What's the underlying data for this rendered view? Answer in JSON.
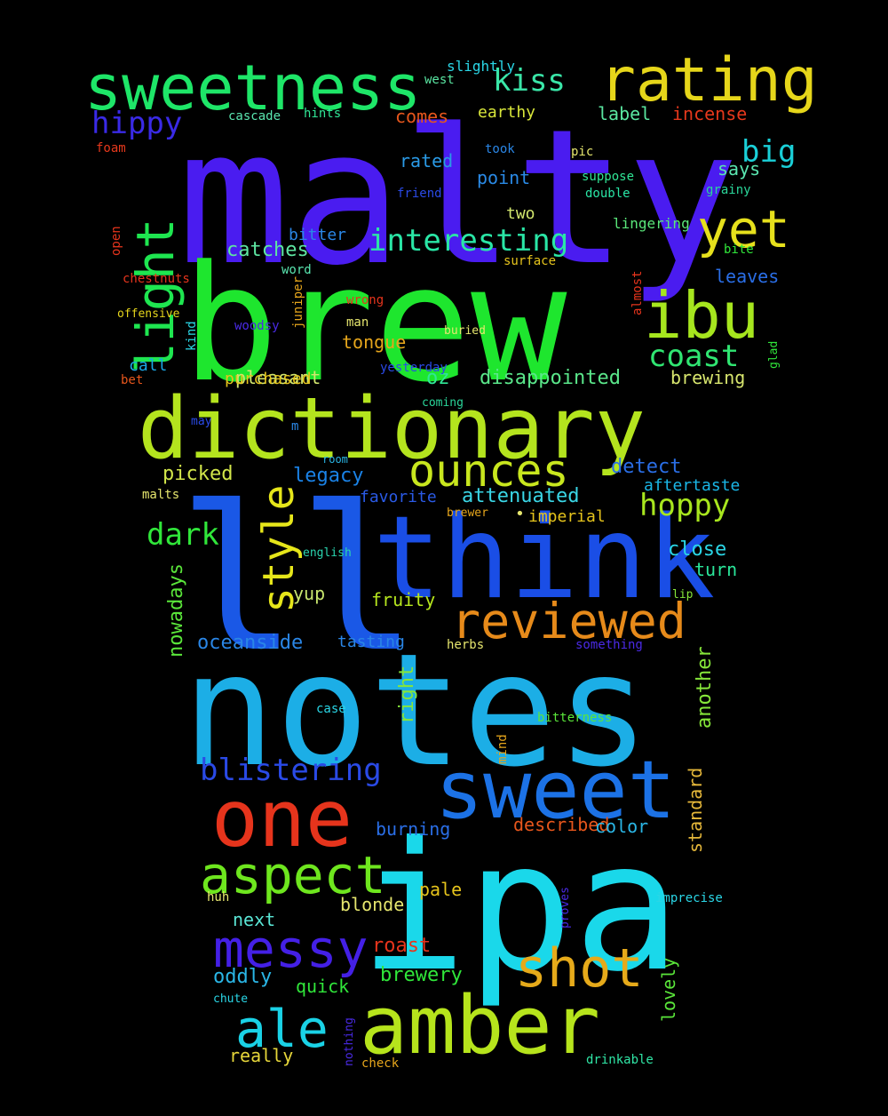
{
  "background": "#000000",
  "words": [
    {
      "text": "malty",
      "color": "#4a1cf0"
    },
    {
      "text": "brew",
      "color": "#1ee62e"
    },
    {
      "text": "notes",
      "color": "#1caee6"
    },
    {
      "text": "ipa",
      "color": "#1ad8ea"
    },
    {
      "text": "ll",
      "color": "#1a58e6"
    },
    {
      "text": "dictionary",
      "color": "#b4e41e"
    },
    {
      "text": "think",
      "color": "#1a4ee6"
    },
    {
      "text": "amber",
      "color": "#b6e41c"
    },
    {
      "text": "sweet",
      "color": "#1c72e6"
    },
    {
      "text": "one",
      "color": "#e6341c"
    },
    {
      "text": "sweetness",
      "color": "#1ee668"
    },
    {
      "text": "rating",
      "color": "#e6d61a"
    },
    {
      "text": "reviewed",
      "color": "#e68a1a"
    },
    {
      "text": "ibu",
      "color": "#a6e61e"
    },
    {
      "text": "ounces",
      "color": "#c8e61e"
    },
    {
      "text": "aspect",
      "color": "#6ee61e"
    },
    {
      "text": "messy",
      "color": "#4420e6"
    },
    {
      "text": "shot",
      "color": "#e6aa1a"
    },
    {
      "text": "ale",
      "color": "#1ad2e6"
    },
    {
      "text": "yet",
      "color": "#e6e01c"
    },
    {
      "text": "light",
      "color": "#1ee650"
    },
    {
      "text": "style",
      "color": "#e6e61a"
    },
    {
      "text": "interesting",
      "color": "#2ae6a6"
    },
    {
      "text": "blistering",
      "color": "#2a4ae6"
    },
    {
      "text": "hoppy",
      "color": "#a8e61e"
    },
    {
      "text": "coast",
      "color": "#30e672"
    },
    {
      "text": "hippy",
      "color": "#3a2ae6"
    },
    {
      "text": "kiss",
      "color": "#3ae6a8"
    },
    {
      "text": "big",
      "color": "#1ad0d8"
    },
    {
      "text": "dark",
      "color": "#30e63a"
    },
    {
      "text": "oceanside",
      "color": "#2a86e6"
    },
    {
      "text": "catches",
      "color": "#5ee6a2"
    },
    {
      "text": "pleasant",
      "color": "#d2e66e"
    },
    {
      "text": "disappointed",
      "color": "#5ae68a"
    },
    {
      "text": "legacy",
      "color": "#1a82e6"
    },
    {
      "text": "picked",
      "color": "#d2e64a"
    },
    {
      "text": "detect",
      "color": "#2a6ee6"
    },
    {
      "text": "close",
      "color": "#2ad6e6"
    },
    {
      "text": "attenuated",
      "color": "#3ad6e6"
    },
    {
      "text": "label",
      "color": "#5ae6a0"
    },
    {
      "text": "incense",
      "color": "#e6381c"
    },
    {
      "text": "comes",
      "color": "#e6561c"
    },
    {
      "text": "earthy",
      "color": "#d8e63a"
    },
    {
      "text": "rated",
      "color": "#2a9ae6"
    },
    {
      "text": "point",
      "color": "#2a8ae6"
    },
    {
      "text": "says",
      "color": "#5ae6b0"
    },
    {
      "text": "two",
      "color": "#d2e66e"
    },
    {
      "text": "bitter",
      "color": "#2a86e6"
    },
    {
      "text": "oz",
      "color": "#30e696"
    },
    {
      "text": "tongue",
      "color": "#e6a61c"
    },
    {
      "text": "brewing",
      "color": "#d8e66e"
    },
    {
      "text": "leaves",
      "color": "#2a6ee6"
    },
    {
      "text": "call",
      "color": "#1aa6e6"
    },
    {
      "text": "favorite",
      "color": "#2a5ae6"
    },
    {
      "text": "imperial",
      "color": "#e6c41c"
    },
    {
      "text": "aftertaste",
      "color": "#1ab6e6"
    },
    {
      "text": "turn",
      "color": "#2ae69a"
    },
    {
      "text": "fruity",
      "color": "#b6e61e"
    },
    {
      "text": "yup",
      "color": "#c8e66e"
    },
    {
      "text": "tasting",
      "color": "#2a86e6"
    },
    {
      "text": "nowadays",
      "color": "#5ae63a"
    },
    {
      "text": "right",
      "color": "#86e63a"
    },
    {
      "text": "another",
      "color": "#86e63a"
    },
    {
      "text": "standard",
      "color": "#e6b83a"
    },
    {
      "text": "burning",
      "color": "#2a6ee6"
    },
    {
      "text": "described",
      "color": "#e6561c"
    },
    {
      "text": "color",
      "color": "#2ab6e6"
    },
    {
      "text": "blonde",
      "color": "#e6e66e"
    },
    {
      "text": "pale",
      "color": "#e6c41c"
    },
    {
      "text": "next",
      "color": "#5ae6d6"
    },
    {
      "text": "roast",
      "color": "#e6341c"
    },
    {
      "text": "brewery",
      "color": "#30e63a"
    },
    {
      "text": "oddly",
      "color": "#2ab6e6"
    },
    {
      "text": "quick",
      "color": "#30e63a"
    },
    {
      "text": "lovely",
      "color": "#5ae63a"
    },
    {
      "text": "really",
      "color": "#e6d63a"
    },
    {
      "text": "slightly",
      "color": "#2ad6e6"
    },
    {
      "text": "west",
      "color": "#5ae6a2"
    },
    {
      "text": "cascade",
      "color": "#5ae6b0"
    },
    {
      "text": "hints",
      "color": "#30e696"
    },
    {
      "text": "foam",
      "color": "#e6381c"
    },
    {
      "text": "took",
      "color": "#2a86e6"
    },
    {
      "text": "pic",
      "color": "#e6e66e"
    },
    {
      "text": "suppose",
      "color": "#30e696"
    },
    {
      "text": "double",
      "color": "#2ae6a6"
    },
    {
      "text": "friend",
      "color": "#2a4ae6"
    },
    {
      "text": "grainy",
      "color": "#2ad69a"
    },
    {
      "text": "lingering",
      "color": "#5ae67a"
    },
    {
      "text": "open",
      "color": "#e6341c"
    },
    {
      "text": "bite",
      "color": "#30e63a"
    },
    {
      "text": "surface",
      "color": "#e6c41c"
    },
    {
      "text": "chestnuts",
      "color": "#e6341c"
    },
    {
      "text": "word",
      "color": "#5ae6b0"
    },
    {
      "text": "kind",
      "color": "#2ad6e6"
    },
    {
      "text": "juniper",
      "color": "#e6a61c"
    },
    {
      "text": "wrong",
      "color": "#e6341c"
    },
    {
      "text": "almost",
      "color": "#e6341c"
    },
    {
      "text": "glad",
      "color": "#30e63a"
    },
    {
      "text": "offensive",
      "color": "#e6d61c"
    },
    {
      "text": "woodsy",
      "color": "#4a2ae6"
    },
    {
      "text": "man",
      "color": "#e6e66e"
    },
    {
      "text": "buried",
      "color": "#e6e66e"
    },
    {
      "text": "yesterday",
      "color": "#2a4ae6"
    },
    {
      "text": "bet",
      "color": "#e6561c"
    },
    {
      "text": "coming",
      "color": "#2ad69a"
    },
    {
      "text": "may",
      "color": "#2a4ae6"
    },
    {
      "text": "m",
      "color": "#2a86e6"
    },
    {
      "text": "room",
      "color": "#2ab6e6"
    },
    {
      "text": "malts",
      "color": "#e6e66e"
    },
    {
      "text": "brewer",
      "color": "#e6a61c"
    },
    {
      "text": "english",
      "color": "#2ad6b0"
    },
    {
      "text": "lip",
      "color": "#86e63a"
    },
    {
      "text": "herbs",
      "color": "#e6e66e"
    },
    {
      "text": "something",
      "color": "#4a2ae6"
    },
    {
      "text": "case",
      "color": "#2ad6e6"
    },
    {
      "text": "mind",
      "color": "#e6a61c"
    },
    {
      "text": "bitterness",
      "color": "#5ae63a"
    },
    {
      "text": "huh",
      "color": "#e6e66e"
    },
    {
      "text": "proves",
      "color": "#4a2ae6"
    },
    {
      "text": "imprecise",
      "color": "#2ad6e6"
    },
    {
      "text": "chute",
      "color": "#2ad6e6"
    },
    {
      "text": "nothing",
      "color": "#4a2ae6"
    },
    {
      "text": "check",
      "color": "#e6a61c"
    },
    {
      "text": "drinkable",
      "color": "#30e6a6"
    },
    {
      "text": "purchased",
      "color": "#e6c41c"
    },
    {
      "text": "•",
      "color": "#e6e66e"
    },
    {
      "text": "•",
      "color": "#2a86e6"
    }
  ]
}
